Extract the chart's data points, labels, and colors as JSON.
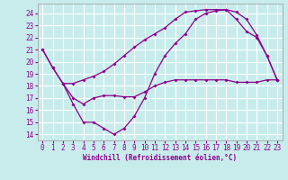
{
  "xlabel": "Windchill (Refroidissement éolien,°C)",
  "background_color": "#c8ecec",
  "line_color": "#8b008b",
  "grid_color": "#ffffff",
  "x_ticks": [
    0,
    1,
    2,
    3,
    4,
    5,
    6,
    7,
    8,
    9,
    10,
    11,
    12,
    13,
    14,
    15,
    16,
    17,
    18,
    19,
    20,
    21,
    22,
    23
  ],
  "y_ticks": [
    14,
    15,
    16,
    17,
    18,
    19,
    20,
    21,
    22,
    23,
    24
  ],
  "ylim": [
    13.5,
    24.8
  ],
  "xlim": [
    -0.5,
    23.5
  ],
  "line1_x": [
    0,
    1,
    2,
    3,
    4,
    5,
    6,
    7,
    8,
    9,
    10,
    11,
    12,
    13,
    14,
    15,
    16,
    17,
    18,
    19,
    20,
    21,
    22,
    23
  ],
  "line1_y": [
    21.0,
    19.5,
    18.2,
    16.5,
    15.0,
    15.0,
    14.5,
    14.0,
    14.5,
    15.5,
    17.0,
    19.0,
    20.5,
    21.5,
    22.3,
    23.5,
    24.0,
    24.2,
    24.3,
    23.5,
    22.5,
    22.0,
    20.5,
    18.5
  ],
  "line2_x": [
    2,
    3,
    4,
    5,
    6,
    7,
    8,
    9,
    10,
    11,
    12,
    13,
    14,
    15,
    16,
    17,
    18,
    19,
    20,
    21,
    22,
    23
  ],
  "line2_y": [
    18.2,
    18.2,
    18.5,
    18.8,
    19.2,
    19.8,
    20.5,
    21.2,
    21.8,
    22.3,
    22.8,
    23.5,
    24.1,
    24.2,
    24.3,
    24.3,
    24.3,
    24.1,
    23.5,
    22.2,
    20.5,
    18.5
  ],
  "line3_x": [
    0,
    1,
    2,
    3,
    4,
    5,
    6,
    7,
    8,
    9,
    10,
    11,
    12,
    13,
    14,
    15,
    16,
    17,
    18,
    19,
    20,
    21,
    22,
    23
  ],
  "line3_y": [
    21.0,
    19.5,
    18.2,
    17.0,
    16.5,
    17.0,
    17.2,
    17.2,
    17.1,
    17.1,
    17.5,
    18.0,
    18.3,
    18.5,
    18.5,
    18.5,
    18.5,
    18.5,
    18.5,
    18.3,
    18.3,
    18.3,
    18.5,
    18.5
  ],
  "xlabel_fontsize": 5.5,
  "tick_fontsize": 5.5,
  "line_width": 0.9,
  "marker_size": 2.0
}
